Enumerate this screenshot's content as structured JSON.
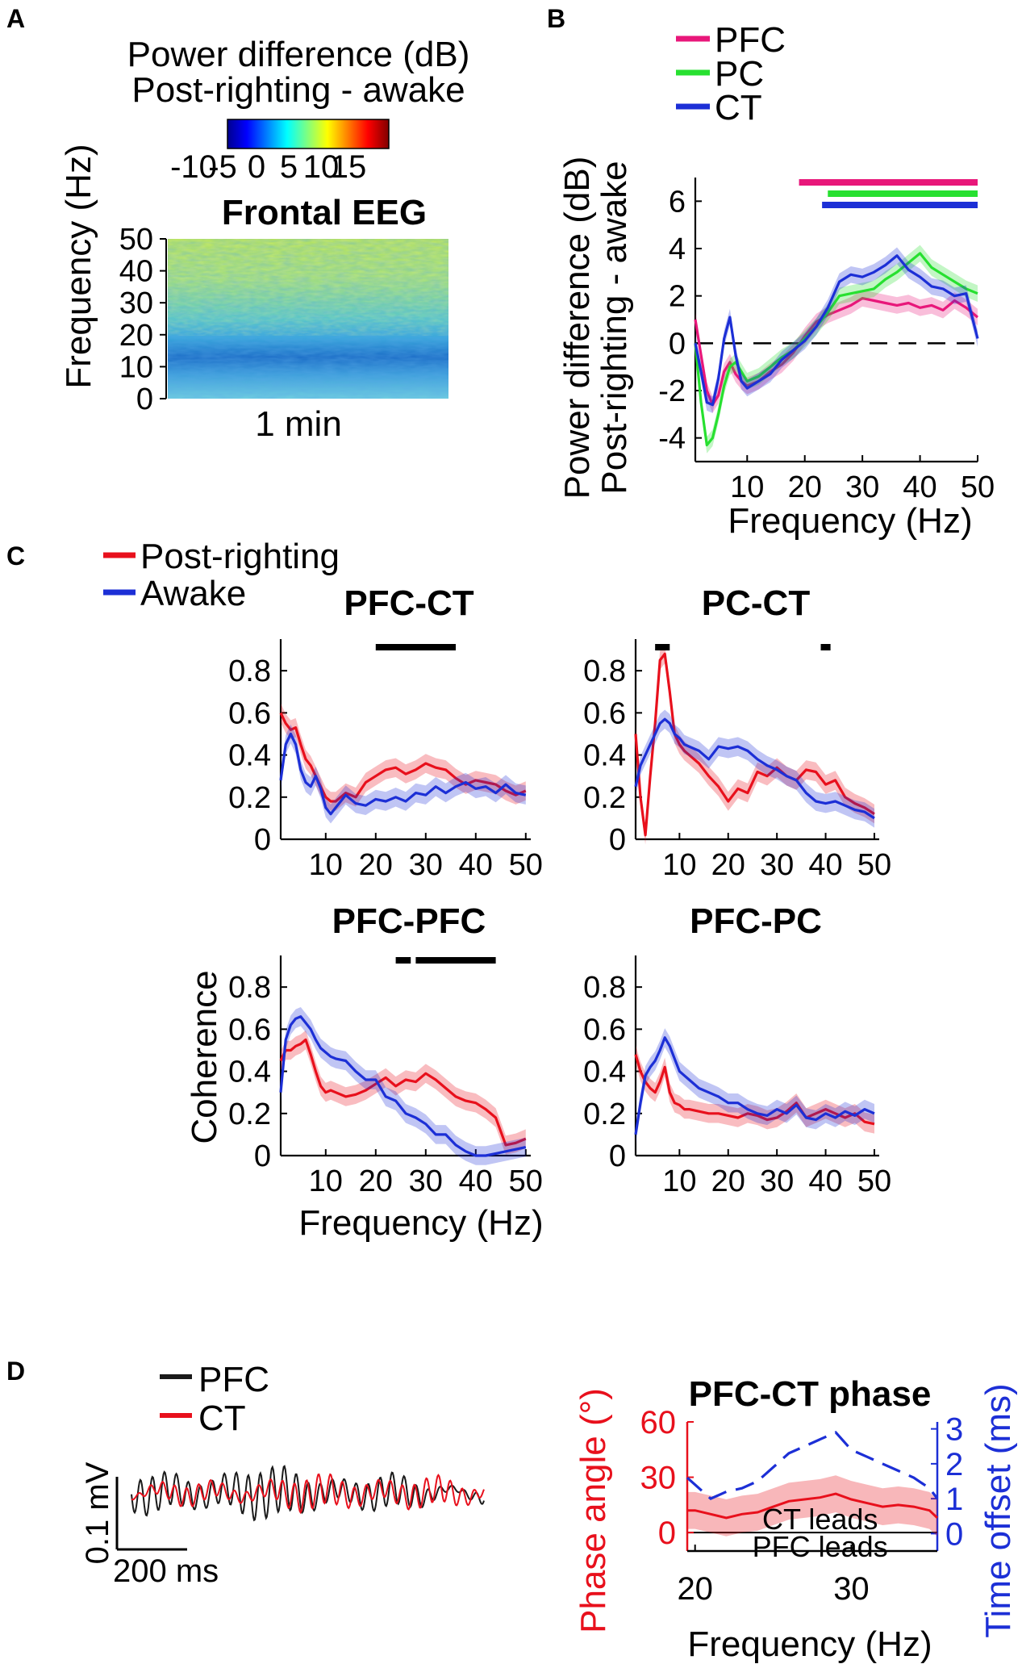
{
  "panels": {
    "A": "A",
    "B": "B",
    "C": "C",
    "D": "D"
  },
  "colors": {
    "pfc": "#e8177a",
    "pc": "#27e030",
    "ct": "#1c2fd6",
    "post": "#e8101c",
    "awake": "#1c2fd6",
    "trace_pfc": "#1a1a1a",
    "trace_ct": "#e8101c",
    "phase": "#e8101c",
    "offset": "#1c2fd6"
  },
  "panelA": {
    "title1": "Power difference (dB)",
    "title2": "Post-righting - awake",
    "colorbar_ticks": [
      "-10",
      "-5",
      "0",
      "5",
      "10",
      "15"
    ],
    "plot_title": "Frontal EEG",
    "ylabel": "Frequency (Hz)",
    "xlabel": "1 min",
    "yticks": [
      "0",
      "10",
      "20",
      "30",
      "40",
      "50"
    ]
  },
  "chart_data": [
    {
      "id": "B",
      "type": "line",
      "title": "",
      "legend": [
        "PFC",
        "PC",
        "CT"
      ],
      "xlabel": "Frequency (Hz)",
      "ylabel1": "Power difference (dB)",
      "ylabel2": "Post-righting - awake",
      "xlim": [
        1,
        50
      ],
      "ylim": [
        -5,
        7
      ],
      "xticks": [
        "10",
        "20",
        "30",
        "40",
        "50"
      ],
      "yticks": [
        "-4",
        "-2",
        "0",
        "2",
        "4",
        "6"
      ],
      "x": [
        1,
        2,
        3,
        4,
        5,
        6,
        7,
        8,
        9,
        10,
        12,
        14,
        16,
        18,
        20,
        22,
        24,
        26,
        28,
        30,
        32,
        34,
        36,
        38,
        40,
        42,
        44,
        46,
        48,
        50
      ],
      "series": [
        {
          "name": "PFC",
          "values": [
            1,
            -0.5,
            -2,
            -2.6,
            -2.2,
            -1.2,
            -0.8,
            -1.3,
            -1.6,
            -1.8,
            -1.6,
            -1.2,
            -0.9,
            -0.4,
            0.3,
            0.9,
            1.2,
            1.4,
            1.6,
            1.9,
            1.8,
            1.7,
            1.6,
            1.7,
            1.5,
            1.6,
            1.4,
            1.8,
            1.5,
            1.1
          ]
        },
        {
          "name": "PC",
          "values": [
            0,
            -2.5,
            -4.3,
            -4,
            -3,
            -1.8,
            -1,
            -0.8,
            -1.2,
            -1.6,
            -1.4,
            -1,
            -0.6,
            -0.3,
            0.2,
            0.7,
            1.3,
            2,
            2.1,
            2.2,
            2.3,
            2.7,
            3,
            3.4,
            3.8,
            3.2,
            2.9,
            2.6,
            2.3,
            2.1
          ]
        },
        {
          "name": "CT",
          "values": [
            0,
            -1.2,
            -2.5,
            -2.6,
            -1.5,
            0.2,
            1.1,
            -0.5,
            -1.6,
            -1.9,
            -1.6,
            -1.3,
            -0.7,
            -0.3,
            0.1,
            0.7,
            1.5,
            2.6,
            2.9,
            2.8,
            3,
            3.3,
            3.7,
            3.1,
            2.8,
            2.4,
            2.3,
            2,
            2.1,
            0.2
          ]
        }
      ],
      "significance_bars": [
        {
          "series": "PFC",
          "from": 19,
          "to": 50
        },
        {
          "series": "PC",
          "from": 24,
          "to": 50
        },
        {
          "series": "CT",
          "from": 23,
          "to": 50
        }
      ]
    },
    {
      "id": "C-PFC-CT",
      "type": "line",
      "title": "PFC-CT",
      "legend": [
        "Post-righting",
        "Awake"
      ],
      "xlim": [
        1,
        51
      ],
      "ylim": [
        0,
        0.95
      ],
      "xticks": [
        "10",
        "20",
        "30",
        "40",
        "50"
      ],
      "yticks": [
        "0",
        "0.2",
        "0.4",
        "0.6",
        "0.8"
      ],
      "x": [
        1,
        2,
        3,
        4,
        5,
        6,
        7,
        8,
        9,
        10,
        11,
        12,
        14,
        16,
        18,
        20,
        22,
        24,
        26,
        28,
        30,
        32,
        34,
        36,
        38,
        40,
        42,
        44,
        46,
        48,
        50
      ],
      "series": [
        {
          "name": "Post-righting",
          "values": [
            0.6,
            0.55,
            0.52,
            0.53,
            0.45,
            0.38,
            0.35,
            0.3,
            0.25,
            0.2,
            0.18,
            0.18,
            0.22,
            0.2,
            0.27,
            0.3,
            0.33,
            0.34,
            0.31,
            0.33,
            0.36,
            0.34,
            0.33,
            0.29,
            0.26,
            0.28,
            0.27,
            0.26,
            0.23,
            0.21,
            0.23
          ]
        },
        {
          "name": "Awake",
          "values": [
            0.28,
            0.45,
            0.5,
            0.45,
            0.33,
            0.27,
            0.25,
            0.3,
            0.24,
            0.15,
            0.12,
            0.15,
            0.21,
            0.17,
            0.16,
            0.19,
            0.18,
            0.2,
            0.18,
            0.22,
            0.21,
            0.25,
            0.22,
            0.25,
            0.27,
            0.24,
            0.25,
            0.22,
            0.26,
            0.22,
            0.21
          ]
        }
      ],
      "significance_bars": [
        {
          "from": 20,
          "to": 36
        }
      ]
    },
    {
      "id": "C-PC-CT",
      "type": "line",
      "title": "PC-CT",
      "xlim": [
        1,
        51
      ],
      "ylim": [
        0,
        0.95
      ],
      "xticks": [
        "10",
        "20",
        "30",
        "40",
        "50"
      ],
      "yticks": [
        "0",
        "0.2",
        "0.4",
        "0.6",
        "0.8"
      ],
      "x": [
        1,
        2,
        3,
        4,
        5,
        6,
        7,
        8,
        9,
        10,
        11,
        12,
        14,
        16,
        18,
        20,
        22,
        24,
        26,
        28,
        30,
        32,
        34,
        36,
        38,
        40,
        42,
        44,
        46,
        48,
        50
      ],
      "series": [
        {
          "name": "Post-righting",
          "values": [
            0.5,
            0.2,
            0.02,
            0.3,
            0.55,
            0.85,
            0.88,
            0.7,
            0.5,
            0.45,
            0.42,
            0.4,
            0.36,
            0.3,
            0.25,
            0.18,
            0.24,
            0.22,
            0.32,
            0.3,
            0.34,
            0.3,
            0.28,
            0.33,
            0.32,
            0.26,
            0.28,
            0.2,
            0.17,
            0.15,
            0.12
          ]
        },
        {
          "name": "Awake",
          "values": [
            0.25,
            0.35,
            0.4,
            0.45,
            0.5,
            0.55,
            0.57,
            0.55,
            0.5,
            0.48,
            0.45,
            0.44,
            0.42,
            0.38,
            0.44,
            0.43,
            0.44,
            0.42,
            0.38,
            0.35,
            0.33,
            0.3,
            0.28,
            0.22,
            0.18,
            0.17,
            0.18,
            0.16,
            0.14,
            0.13,
            0.1
          ]
        }
      ],
      "significance_bars": [
        {
          "from": 5,
          "to": 8
        },
        {
          "from": 39,
          "to": 41
        }
      ]
    },
    {
      "id": "C-PFC-PFC",
      "type": "line",
      "title": "PFC-PFC",
      "ylabel": "Coherence",
      "xlabel": "Frequency (Hz)",
      "xlim": [
        1,
        51
      ],
      "ylim": [
        0,
        0.95
      ],
      "xticks": [
        "10",
        "20",
        "30",
        "40",
        "50"
      ],
      "yticks": [
        "0",
        "0.2",
        "0.4",
        "0.6",
        "0.8"
      ],
      "x": [
        1,
        2,
        3,
        4,
        5,
        6,
        7,
        8,
        9,
        10,
        11,
        12,
        14,
        16,
        18,
        20,
        22,
        24,
        26,
        28,
        30,
        32,
        34,
        36,
        38,
        40,
        42,
        44,
        46,
        48,
        50
      ],
      "series": [
        {
          "name": "Post-righting",
          "values": [
            0.45,
            0.5,
            0.5,
            0.52,
            0.53,
            0.55,
            0.48,
            0.4,
            0.33,
            0.3,
            0.31,
            0.3,
            0.28,
            0.29,
            0.31,
            0.34,
            0.37,
            0.33,
            0.36,
            0.35,
            0.39,
            0.36,
            0.32,
            0.28,
            0.26,
            0.25,
            0.22,
            0.18,
            0.05,
            0.06,
            0.08
          ]
        },
        {
          "name": "Awake",
          "values": [
            0.3,
            0.55,
            0.62,
            0.65,
            0.66,
            0.63,
            0.6,
            0.55,
            0.51,
            0.49,
            0.47,
            0.46,
            0.45,
            0.4,
            0.36,
            0.36,
            0.28,
            0.26,
            0.2,
            0.18,
            0.15,
            0.1,
            0.1,
            0.05,
            0.02,
            0.0,
            0.0,
            0.01,
            0.02,
            0.03,
            0.04
          ]
        }
      ],
      "significance_bars": [
        {
          "from": 24,
          "to": 27
        },
        {
          "from": 28,
          "to": 44
        }
      ]
    },
    {
      "id": "C-PFC-PC",
      "type": "line",
      "title": "PFC-PC",
      "xlim": [
        1,
        51
      ],
      "ylim": [
        0,
        0.95
      ],
      "xticks": [
        "10",
        "20",
        "30",
        "40",
        "50"
      ],
      "yticks": [
        "0",
        "0.2",
        "0.4",
        "0.6",
        "0.8"
      ],
      "x": [
        1,
        2,
        3,
        4,
        5,
        6,
        7,
        8,
        9,
        10,
        11,
        12,
        14,
        16,
        18,
        20,
        22,
        24,
        26,
        28,
        30,
        32,
        34,
        36,
        38,
        40,
        42,
        44,
        46,
        48,
        50
      ],
      "series": [
        {
          "name": "Post-righting",
          "values": [
            0.48,
            0.4,
            0.35,
            0.32,
            0.3,
            0.35,
            0.42,
            0.3,
            0.25,
            0.24,
            0.22,
            0.22,
            0.21,
            0.2,
            0.2,
            0.19,
            0.18,
            0.2,
            0.19,
            0.17,
            0.18,
            0.21,
            0.25,
            0.18,
            0.2,
            0.22,
            0.2,
            0.18,
            0.2,
            0.16,
            0.15
          ]
        },
        {
          "name": "Awake",
          "values": [
            0.1,
            0.25,
            0.38,
            0.42,
            0.45,
            0.5,
            0.56,
            0.52,
            0.46,
            0.4,
            0.38,
            0.36,
            0.32,
            0.3,
            0.28,
            0.25,
            0.25,
            0.22,
            0.2,
            0.19,
            0.22,
            0.2,
            0.24,
            0.18,
            0.17,
            0.2,
            0.18,
            0.21,
            0.19,
            0.22,
            0.2
          ]
        }
      ],
      "significance_bars": []
    },
    {
      "id": "D-phase",
      "type": "line",
      "title": "PFC-CT phase",
      "xlabel": "Frequency (Hz)",
      "ylabel_left": "Phase angle (°)",
      "ylabel_right": "Time offset (ms)",
      "xlim": [
        19.5,
        35.5
      ],
      "ylim_left": [
        -10,
        60
      ],
      "ylim_right": [
        -0.5,
        3.2
      ],
      "xticks": [
        "20",
        "30"
      ],
      "yticks_left": [
        "0",
        "30",
        "60"
      ],
      "yticks_right": [
        "0",
        "1",
        "2",
        "3"
      ],
      "annotations": [
        "CT leads",
        "PFC leads"
      ],
      "x": [
        19.5,
        20,
        21,
        22,
        23,
        24,
        25,
        26,
        27,
        28,
        29,
        30,
        31,
        32,
        33,
        34,
        35,
        35.5
      ],
      "series": [
        {
          "name": "Phase angle",
          "values": [
            12,
            12,
            10,
            8,
            10,
            11,
            14,
            17,
            18,
            19,
            21,
            18,
            16,
            14,
            15,
            14,
            12,
            8
          ]
        },
        {
          "name": "Time offset",
          "values": [
            1.6,
            1.4,
            1.0,
            1.2,
            1.3,
            1.5,
            1.9,
            2.3,
            2.5,
            2.7,
            2.9,
            2.4,
            2.2,
            2.0,
            1.8,
            1.6,
            1.3,
            1.0
          ]
        }
      ]
    }
  ],
  "panelC_legend": [
    "Post-righting",
    "Awake"
  ],
  "panelD": {
    "legend": [
      "PFC",
      "CT"
    ],
    "scalebar_v": "0.1 mV",
    "scalebar_h": "200 ms"
  }
}
